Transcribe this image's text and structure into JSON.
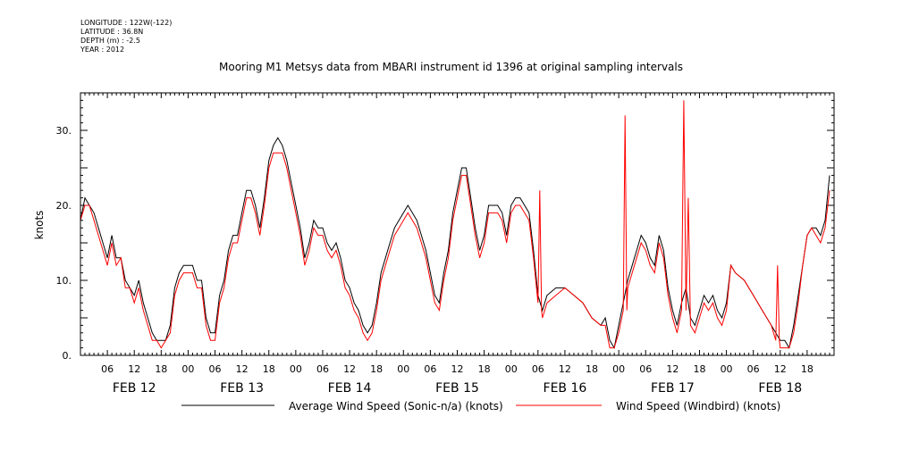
{
  "header": {
    "longitude": "LONGITUDE : 122W(-122)",
    "latitude": "LATITUDE : 36.8N",
    "depth": "DEPTH (m) : -2.5",
    "year": "YEAR : 2012"
  },
  "chart_data": {
    "type": "line",
    "title": "Mooring M1 Metsys data from MBARI instrument id 1396 at original sampling intervals",
    "ylabel": "knots",
    "ylim": [
      0,
      35
    ],
    "xlim_hours": [
      0,
      168
    ],
    "y_ticks": [
      {
        "value": 0,
        "label": "0."
      },
      {
        "value": 10,
        "label": "10."
      },
      {
        "value": 20,
        "label": "20."
      },
      {
        "value": 30,
        "label": "30."
      }
    ],
    "hour_ticks": [
      "06",
      "12",
      "18",
      "00",
      "06",
      "12",
      "18",
      "00",
      "06",
      "12",
      "18",
      "00",
      "06",
      "12",
      "18",
      "00",
      "06",
      "12",
      "18",
      "00",
      "06",
      "12",
      "18",
      "00",
      "06",
      "12",
      "18"
    ],
    "day_labels": [
      "FEB 12",
      "FEB 13",
      "FEB 14",
      "FEB 15",
      "FEB 16",
      "FEB 17",
      "FEB 18"
    ],
    "grid": false,
    "legend": "bottom",
    "series": [
      {
        "name": "Average Wind Speed (Sonic-n/a) (knots)",
        "color": "#000000",
        "points": [
          [
            0,
            18
          ],
          [
            1,
            21
          ],
          [
            2,
            20
          ],
          [
            3,
            19
          ],
          [
            4,
            17
          ],
          [
            5,
            15
          ],
          [
            6,
            13
          ],
          [
            7,
            16
          ],
          [
            8,
            13
          ],
          [
            9,
            13
          ],
          [
            10,
            10
          ],
          [
            11,
            9
          ],
          [
            12,
            8
          ],
          [
            13,
            10
          ],
          [
            14,
            7
          ],
          [
            15,
            5
          ],
          [
            16,
            3
          ],
          [
            17,
            2
          ],
          [
            18,
            2
          ],
          [
            19,
            2
          ],
          [
            20,
            4
          ],
          [
            21,
            9
          ],
          [
            22,
            11
          ],
          [
            23,
            12
          ],
          [
            24,
            12
          ],
          [
            25,
            12
          ],
          [
            26,
            10
          ],
          [
            27,
            10
          ],
          [
            28,
            5
          ],
          [
            29,
            3
          ],
          [
            30,
            3
          ],
          [
            31,
            8
          ],
          [
            32,
            10
          ],
          [
            33,
            14
          ],
          [
            34,
            16
          ],
          [
            35,
            16
          ],
          [
            36,
            19
          ],
          [
            37,
            22
          ],
          [
            38,
            22
          ],
          [
            39,
            20
          ],
          [
            40,
            17
          ],
          [
            41,
            21
          ],
          [
            42,
            26
          ],
          [
            43,
            28
          ],
          [
            44,
            29
          ],
          [
            45,
            28
          ],
          [
            46,
            26
          ],
          [
            47,
            23
          ],
          [
            48,
            20
          ],
          [
            49,
            17
          ],
          [
            50,
            13
          ],
          [
            51,
            15
          ],
          [
            52,
            18
          ],
          [
            53,
            17
          ],
          [
            54,
            17
          ],
          [
            55,
            15
          ],
          [
            56,
            14
          ],
          [
            57,
            15
          ],
          [
            58,
            13
          ],
          [
            59,
            10
          ],
          [
            60,
            9
          ],
          [
            61,
            7
          ],
          [
            62,
            6
          ],
          [
            63,
            4
          ],
          [
            64,
            3
          ],
          [
            65,
            4
          ],
          [
            66,
            7
          ],
          [
            67,
            11
          ],
          [
            68,
            13
          ],
          [
            69,
            15
          ],
          [
            70,
            17
          ],
          [
            71,
            18
          ],
          [
            72,
            19
          ],
          [
            73,
            20
          ],
          [
            74,
            19
          ],
          [
            75,
            18
          ],
          [
            76,
            16
          ],
          [
            77,
            14
          ],
          [
            78,
            11
          ],
          [
            79,
            8
          ],
          [
            80,
            7
          ],
          [
            81,
            11
          ],
          [
            82,
            14
          ],
          [
            83,
            19
          ],
          [
            84,
            22
          ],
          [
            85,
            25
          ],
          [
            86,
            25
          ],
          [
            87,
            21
          ],
          [
            88,
            17
          ],
          [
            89,
            14
          ],
          [
            90,
            16
          ],
          [
            91,
            20
          ],
          [
            92,
            20
          ],
          [
            93,
            20
          ],
          [
            94,
            19
          ],
          [
            95,
            16
          ],
          [
            96,
            20
          ],
          [
            97,
            21
          ],
          [
            98,
            21
          ],
          [
            99,
            20
          ],
          [
            100,
            19
          ],
          [
            101,
            14
          ],
          [
            102,
            8
          ],
          [
            103,
            6
          ],
          [
            104,
            8
          ],
          [
            106,
            9
          ],
          [
            108,
            9
          ],
          [
            110,
            8
          ],
          [
            112,
            7
          ],
          [
            114,
            5
          ],
          [
            116,
            4
          ],
          [
            117,
            5
          ],
          [
            118,
            2
          ],
          [
            119,
            1
          ],
          [
            120,
            4
          ],
          [
            121,
            7
          ],
          [
            122,
            10
          ],
          [
            123,
            12
          ],
          [
            124,
            14
          ],
          [
            125,
            16
          ],
          [
            126,
            15
          ],
          [
            127,
            13
          ],
          [
            128,
            12
          ],
          [
            129,
            16
          ],
          [
            130,
            14
          ],
          [
            131,
            9
          ],
          [
            132,
            6
          ],
          [
            133,
            4
          ],
          [
            134,
            7
          ],
          [
            135,
            9
          ],
          [
            136,
            5
          ],
          [
            137,
            4
          ],
          [
            138,
            6
          ],
          [
            139,
            8
          ],
          [
            140,
            7
          ],
          [
            141,
            8
          ],
          [
            142,
            6
          ],
          [
            143,
            5
          ],
          [
            144,
            7
          ],
          [
            145,
            12
          ],
          [
            146,
            11
          ],
          [
            148,
            10
          ],
          [
            150,
            8
          ],
          [
            152,
            6
          ],
          [
            154,
            4
          ],
          [
            155,
            3
          ],
          [
            156,
            2
          ],
          [
            157,
            2
          ],
          [
            158,
            1
          ],
          [
            159,
            4
          ],
          [
            160,
            8
          ],
          [
            161,
            12
          ],
          [
            162,
            16
          ],
          [
            163,
            17
          ],
          [
            164,
            17
          ],
          [
            165,
            16
          ],
          [
            166,
            18
          ],
          [
            167,
            24
          ]
        ]
      },
      {
        "name": "Wind Speed (Windbird) (knots)",
        "color": "#ff0000",
        "points": [
          [
            0,
            18
          ],
          [
            1,
            20
          ],
          [
            2,
            20
          ],
          [
            3,
            18
          ],
          [
            4,
            16
          ],
          [
            5,
            14
          ],
          [
            6,
            12
          ],
          [
            7,
            15
          ],
          [
            8,
            12
          ],
          [
            9,
            13
          ],
          [
            10,
            9
          ],
          [
            11,
            9
          ],
          [
            12,
            7
          ],
          [
            13,
            9
          ],
          [
            14,
            6
          ],
          [
            15,
            4
          ],
          [
            16,
            2
          ],
          [
            17,
            2
          ],
          [
            18,
            1
          ],
          [
            19,
            2
          ],
          [
            20,
            3
          ],
          [
            21,
            8
          ],
          [
            22,
            10
          ],
          [
            23,
            11
          ],
          [
            24,
            11
          ],
          [
            25,
            11
          ],
          [
            26,
            9
          ],
          [
            27,
            9
          ],
          [
            28,
            4
          ],
          [
            29,
            2
          ],
          [
            30,
            2
          ],
          [
            31,
            7
          ],
          [
            32,
            9
          ],
          [
            33,
            13
          ],
          [
            34,
            15
          ],
          [
            35,
            15
          ],
          [
            36,
            18
          ],
          [
            37,
            21
          ],
          [
            38,
            21
          ],
          [
            39,
            19
          ],
          [
            40,
            16
          ],
          [
            41,
            20
          ],
          [
            42,
            25
          ],
          [
            43,
            27
          ],
          [
            44,
            27
          ],
          [
            45,
            27
          ],
          [
            46,
            25
          ],
          [
            47,
            22
          ],
          [
            48,
            19
          ],
          [
            49,
            16
          ],
          [
            50,
            12
          ],
          [
            51,
            14
          ],
          [
            52,
            17
          ],
          [
            53,
            16
          ],
          [
            54,
            16
          ],
          [
            55,
            14
          ],
          [
            56,
            13
          ],
          [
            57,
            14
          ],
          [
            58,
            12
          ],
          [
            59,
            9
          ],
          [
            60,
            8
          ],
          [
            61,
            6
          ],
          [
            62,
            5
          ],
          [
            63,
            3
          ],
          [
            64,
            2
          ],
          [
            65,
            3
          ],
          [
            66,
            6
          ],
          [
            67,
            10
          ],
          [
            68,
            12
          ],
          [
            69,
            14
          ],
          [
            70,
            16
          ],
          [
            71,
            17
          ],
          [
            72,
            18
          ],
          [
            73,
            19
          ],
          [
            74,
            18
          ],
          [
            75,
            17
          ],
          [
            76,
            15
          ],
          [
            77,
            13
          ],
          [
            78,
            10
          ],
          [
            79,
            7
          ],
          [
            80,
            6
          ],
          [
            81,
            10
          ],
          [
            82,
            13
          ],
          [
            83,
            18
          ],
          [
            84,
            21
          ],
          [
            85,
            24
          ],
          [
            86,
            24
          ],
          [
            87,
            20
          ],
          [
            88,
            16
          ],
          [
            89,
            13
          ],
          [
            90,
            15
          ],
          [
            91,
            19
          ],
          [
            92,
            19
          ],
          [
            93,
            19
          ],
          [
            94,
            18
          ],
          [
            95,
            15
          ],
          [
            96,
            19
          ],
          [
            97,
            20
          ],
          [
            98,
            20
          ],
          [
            99,
            19
          ],
          [
            100,
            18
          ],
          [
            101,
            13
          ],
          [
            102,
            7
          ],
          [
            102.4,
            22
          ],
          [
            102.8,
            6
          ],
          [
            103,
            5
          ],
          [
            104,
            7
          ],
          [
            106,
            8
          ],
          [
            108,
            9
          ],
          [
            110,
            8
          ],
          [
            112,
            7
          ],
          [
            114,
            5
          ],
          [
            116,
            4
          ],
          [
            117,
            4
          ],
          [
            118,
            1
          ],
          [
            119,
            1
          ],
          [
            120,
            3
          ],
          [
            121,
            6
          ],
          [
            121.4,
            32
          ],
          [
            121.8,
            6
          ],
          [
            122,
            9
          ],
          [
            123,
            11
          ],
          [
            124,
            13
          ],
          [
            125,
            15
          ],
          [
            126,
            14
          ],
          [
            127,
            12
          ],
          [
            128,
            11
          ],
          [
            129,
            15
          ],
          [
            130,
            13
          ],
          [
            131,
            8
          ],
          [
            132,
            5
          ],
          [
            133,
            3
          ],
          [
            134,
            6
          ],
          [
            134.5,
            34
          ],
          [
            135,
            6
          ],
          [
            135.5,
            21
          ],
          [
            136,
            4
          ],
          [
            137,
            3
          ],
          [
            138,
            5
          ],
          [
            139,
            7
          ],
          [
            140,
            6
          ],
          [
            141,
            7
          ],
          [
            142,
            5
          ],
          [
            143,
            4
          ],
          [
            144,
            6
          ],
          [
            145,
            12
          ],
          [
            146,
            11
          ],
          [
            148,
            10
          ],
          [
            150,
            8
          ],
          [
            152,
            6
          ],
          [
            154,
            4
          ],
          [
            155,
            2
          ],
          [
            155.4,
            12
          ],
          [
            155.8,
            2
          ],
          [
            156,
            1
          ],
          [
            157,
            1
          ],
          [
            158,
            1
          ],
          [
            159,
            3
          ],
          [
            160,
            7
          ],
          [
            161,
            12
          ],
          [
            162,
            16
          ],
          [
            163,
            17
          ],
          [
            164,
            16
          ],
          [
            165,
            15
          ],
          [
            166,
            17
          ],
          [
            167,
            22
          ]
        ]
      }
    ]
  }
}
